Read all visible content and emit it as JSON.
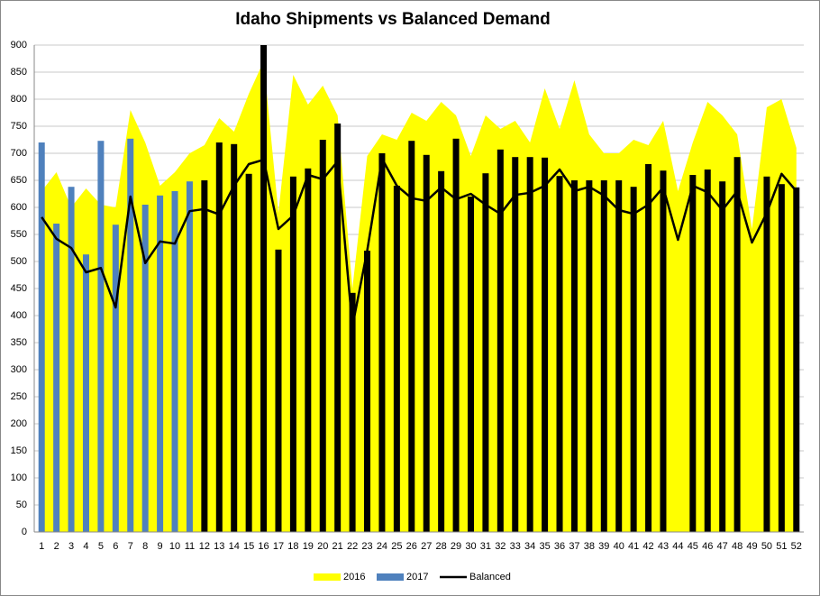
{
  "chart_data": {
    "type": "combo",
    "title": "Idaho Shipments vs Balanced Demand",
    "categories": [
      1,
      2,
      3,
      4,
      5,
      6,
      7,
      8,
      9,
      10,
      11,
      12,
      13,
      14,
      15,
      16,
      17,
      18,
      19,
      20,
      21,
      22,
      23,
      24,
      25,
      26,
      27,
      28,
      29,
      30,
      31,
      32,
      33,
      34,
      35,
      36,
      37,
      38,
      39,
      40,
      41,
      42,
      43,
      44,
      45,
      46,
      47,
      48,
      49,
      50,
      51,
      52
    ],
    "ylim": [
      0,
      900
    ],
    "yticks": [
      0,
      50,
      100,
      150,
      200,
      250,
      300,
      350,
      400,
      450,
      500,
      550,
      600,
      650,
      700,
      750,
      800,
      850,
      900
    ],
    "grid": true,
    "legend": "bottom",
    "series": [
      {
        "name": "2016",
        "kind": "area",
        "color": "#ffff00",
        "values": [
          630,
          665,
          600,
          635,
          605,
          600,
          780,
          720,
          640,
          665,
          700,
          715,
          765,
          740,
          810,
          870,
          590,
          845,
          790,
          825,
          770,
          450,
          695,
          735,
          725,
          775,
          760,
          795,
          770,
          695,
          770,
          745,
          760,
          720,
          820,
          745,
          835,
          735,
          700,
          700,
          725,
          715,
          760,
          630,
          720,
          795,
          770,
          735,
          560,
          785,
          800,
          710
        ]
      },
      {
        "name": "2017",
        "kind": "bar",
        "color": "#4f81bd",
        "point_colors": [
          "#4f81bd",
          "#4f81bd",
          "#4f81bd",
          "#4f81bd",
          "#4f81bd",
          "#4f81bd",
          "#4f81bd",
          "#4f81bd",
          "#4f81bd",
          "#4f81bd",
          "#4f81bd",
          "#000000",
          "#000000",
          "#000000",
          "#000000",
          "#000000",
          "#000000",
          "#000000",
          "#000000",
          "#000000",
          "#000000",
          "#000000",
          "#000000",
          "#000000",
          "#000000",
          "#000000",
          "#000000",
          "#000000",
          "#000000",
          "#000000",
          "#000000",
          "#000000",
          "#000000",
          "#000000",
          "#000000",
          "#000000",
          "#000000",
          "#000000",
          "#000000",
          "#000000",
          "#000000",
          "#000000",
          "#000000",
          "#000000",
          "#000000",
          "#000000",
          "#000000",
          "#000000",
          "#000000",
          "#000000",
          "#000000",
          "#000000"
        ],
        "values": [
          720,
          570,
          638,
          513,
          723,
          568,
          727,
          605,
          622,
          630,
          648,
          650,
          720,
          717,
          662,
          900,
          522,
          657,
          672,
          725,
          755,
          442,
          520,
          700,
          640,
          723,
          697,
          667,
          727,
          620,
          663,
          707,
          693,
          693,
          692,
          658,
          650,
          650,
          650,
          650,
          638,
          680,
          668,
          null,
          660,
          670,
          648,
          693,
          null,
          657,
          643,
          637
        ]
      },
      {
        "name": "Balanced",
        "kind": "line",
        "color": "#000000",
        "values": [
          582,
          542,
          525,
          480,
          488,
          415,
          620,
          497,
          537,
          533,
          593,
          597,
          587,
          640,
          680,
          688,
          560,
          585,
          660,
          652,
          685,
          380,
          520,
          690,
          640,
          617,
          612,
          637,
          615,
          625,
          605,
          588,
          623,
          627,
          640,
          670,
          630,
          638,
          622,
          595,
          588,
          605,
          637,
          540,
          640,
          628,
          595,
          630,
          535,
          590,
          662,
          630
        ]
      }
    ]
  }
}
